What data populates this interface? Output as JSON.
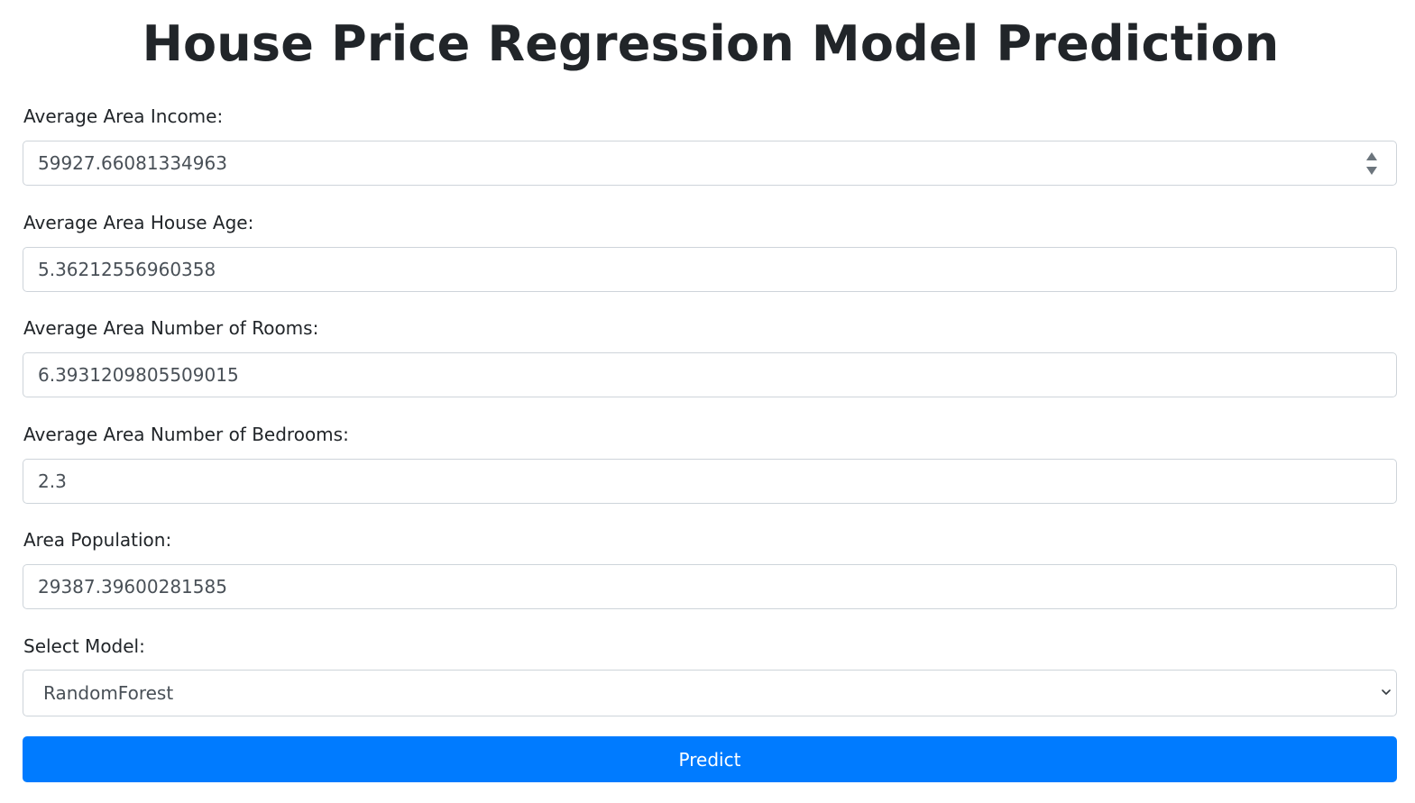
{
  "page": {
    "title": "House Price Regression Model Prediction"
  },
  "form": {
    "income": {
      "label": "Average Area Income:",
      "value": "59927.66081334963"
    },
    "house_age": {
      "label": "Average Area House Age:",
      "value": "5.36212556960358"
    },
    "rooms": {
      "label": "Average Area Number of Rooms:",
      "value": "6.3931209805509015"
    },
    "bedrooms": {
      "label": "Average Area Number of Bedrooms:",
      "value": "2.3"
    },
    "population": {
      "label": "Area Population:",
      "value": "29387.39600281585"
    },
    "model": {
      "label": "Select Model:",
      "selected": "RandomForest"
    },
    "predict_label": "Predict"
  },
  "colors": {
    "primary": "#007bff",
    "text": "#212529",
    "input_text": "#495057",
    "border": "#ced4da"
  },
  "icons": {
    "spinner": "number-spinner-icon",
    "select": "chevron-down-icon"
  }
}
